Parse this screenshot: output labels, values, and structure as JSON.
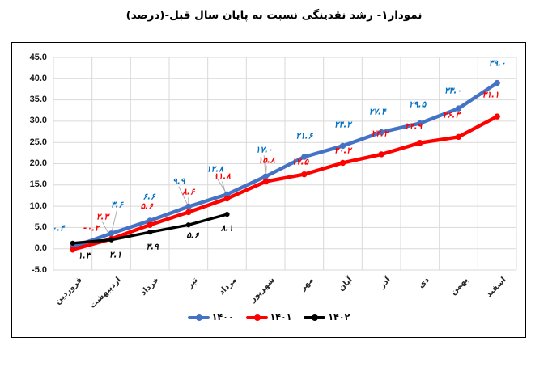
{
  "title": "نمودار۱- رشد نقدینگی نسبت به پایان سال قبل-(درصد)",
  "chart_data": {
    "type": "line",
    "categories": [
      "فروردین",
      "اردیبهشت",
      "خرداد",
      "تیر",
      "مرداد",
      "شهریور",
      "مهر",
      "آبان",
      "آذر",
      "دی",
      "بهمن",
      "اسفند"
    ],
    "series": [
      {
        "name": "۱۴۰۰",
        "color": "#4472C4",
        "label_color": "#0070C0",
        "values": [
          0.4,
          3.6,
          6.6,
          9.9,
          12.8,
          17.0,
          21.6,
          24.2,
          27.4,
          29.5,
          33.0,
          39.0
        ],
        "labels": [
          "۰.۴",
          "۳.۶",
          "۶.۶",
          "۹.۹",
          "۱۲.۸",
          "۱۷.۰",
          "۲۱.۶",
          "۲۴.۲",
          "۲۷.۴",
          "۲۹.۵",
          "۳۳.۰",
          "۳۹.۰"
        ]
      },
      {
        "name": "۱۴۰۱",
        "color": "#FF0000",
        "label_color": "#FF0000",
        "values": [
          -0.2,
          2.3,
          5.6,
          8.6,
          11.8,
          15.8,
          17.5,
          20.2,
          22.2,
          24.9,
          26.3,
          31.1
        ],
        "labels": [
          "-۰.۲",
          "۲.۳",
          "۵.۶",
          "۸.۶",
          "۱۱.۸",
          "۱۵.۸",
          "۱۷.۵",
          "۲۰.۲",
          "۲۲.۲",
          "۲۴.۹",
          "۲۶.۳",
          "۳۱.۱"
        ]
      },
      {
        "name": "۱۴۰۲",
        "color": "#000000",
        "label_color": "#000000",
        "values": [
          1.3,
          2.1,
          3.9,
          5.6,
          8.1
        ],
        "labels": [
          "۱.۳",
          "۲.۱",
          "۳.۹",
          "۵.۶",
          "۸.۱"
        ]
      }
    ],
    "ylim": [
      -5,
      45
    ],
    "ytick_step": 5,
    "ytick_labels": [
      "45.0",
      "40.0",
      "35.0",
      "30.0",
      "25.0",
      "20.0",
      "15.0",
      "10.0",
      "5.0",
      "0.0",
      "-5.0"
    ],
    "grid": true,
    "gridline_color": "#D9D9D9",
    "leader_color": "#A6A6A6",
    "legend_position": "bottom",
    "legend": [
      {
        "label": "۱۴۰۰",
        "color": "#4472C4"
      },
      {
        "label": "۱۴۰۱",
        "color": "#FF0000"
      },
      {
        "label": "۱۴۰۲",
        "color": "#000000"
      }
    ]
  }
}
